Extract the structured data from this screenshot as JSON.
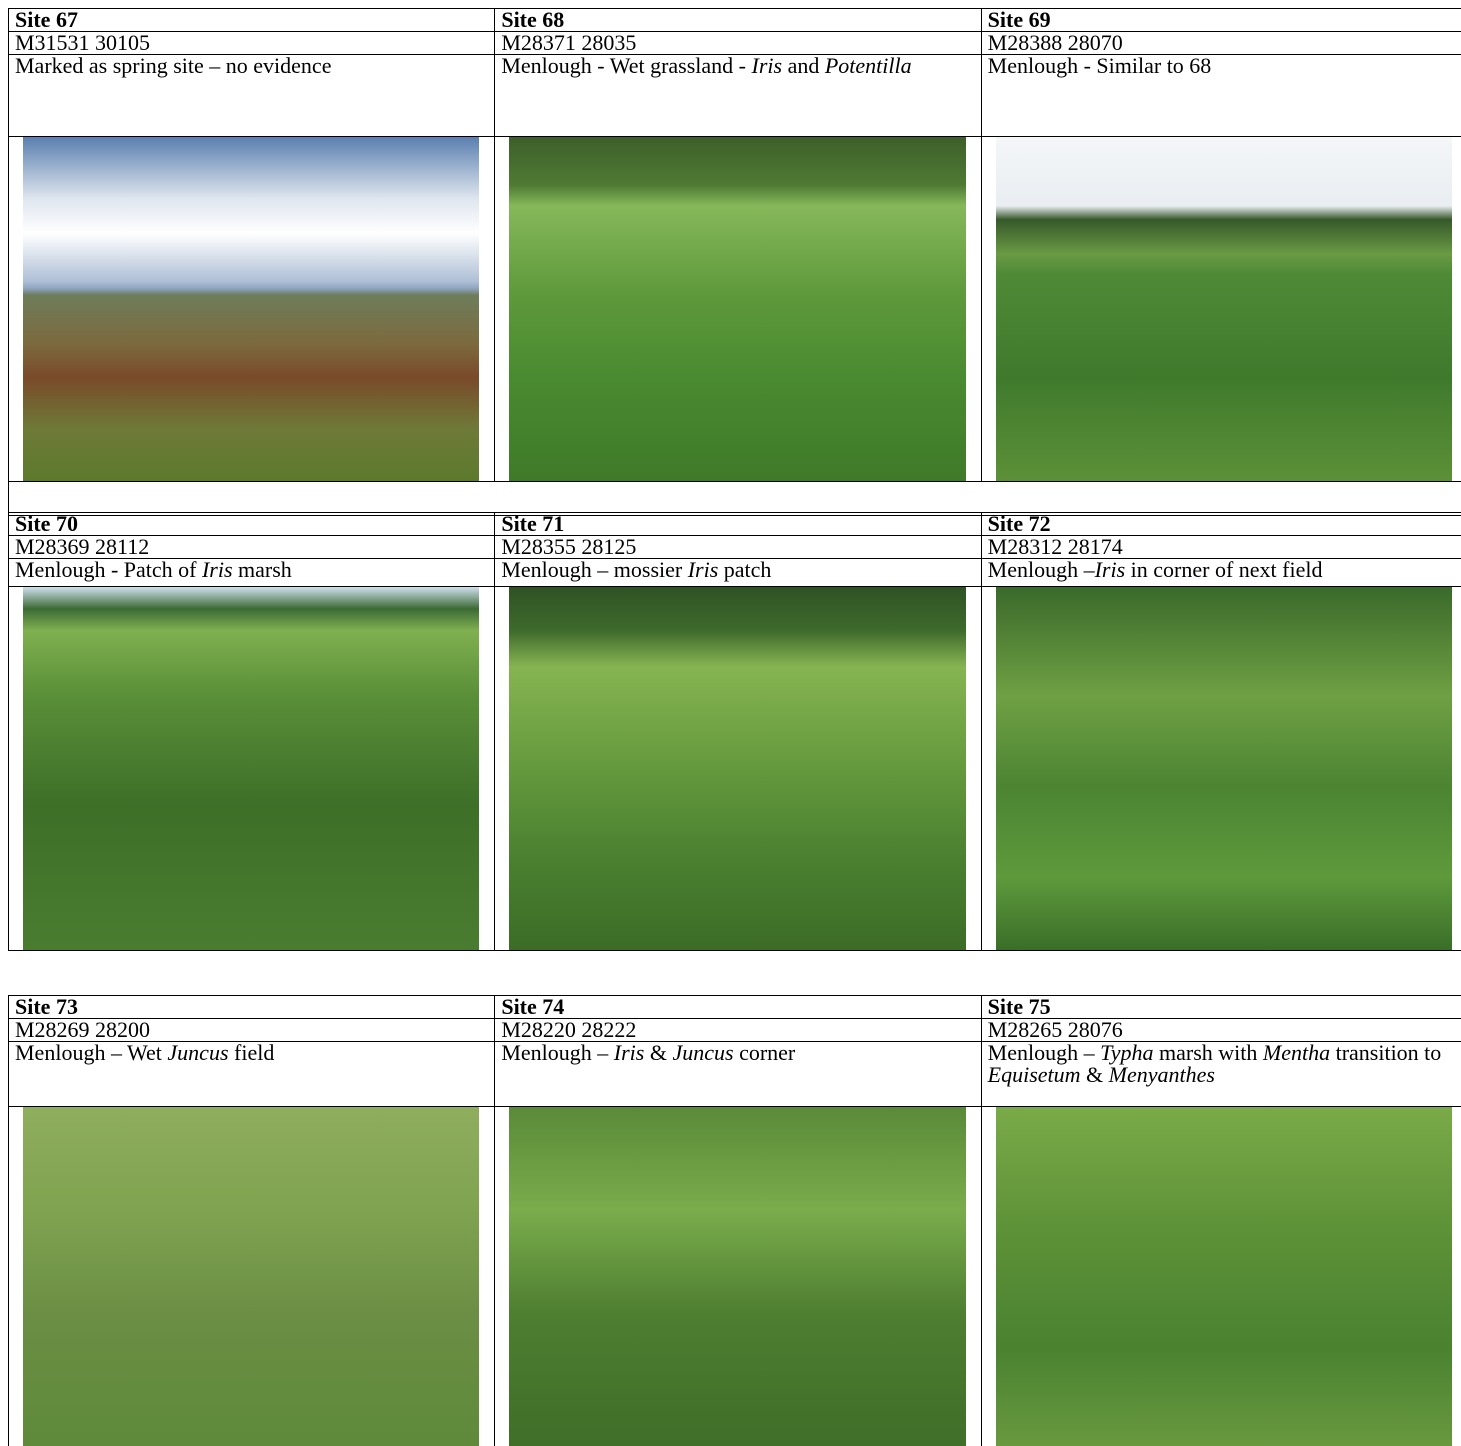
{
  "blocks": [
    {
      "sites": [
        {
          "title": "Site 67",
          "coords": "M31531 30105",
          "description": [
            {
              "text": "Marked as spring site – no evidence",
              "italic": false
            }
          ]
        },
        {
          "title": "Site 68",
          "coords": "M28371 28035",
          "description": [
            {
              "text": "Menlough - Wet grassland - ",
              "italic": false
            },
            {
              "text": "Iris",
              "italic": true
            },
            {
              "text": " and ",
              "italic": false
            },
            {
              "text": "Potentilla",
              "italic": true
            }
          ]
        },
        {
          "title": "Site 69",
          "coords": "M28388 28070",
          "description": [
            {
              "text": "Menlough - Similar to 68",
              "italic": false
            }
          ]
        }
      ]
    },
    {
      "sites": [
        {
          "title": "Site 70",
          "coords": "M28369 28112",
          "description": [
            {
              "text": "Menlough - Patch of ",
              "italic": false
            },
            {
              "text": "Iris",
              "italic": true
            },
            {
              "text": " marsh",
              "italic": false
            }
          ]
        },
        {
          "title": "Site 71",
          "coords": "M28355 28125",
          "description": [
            {
              "text": "Menlough – mossier ",
              "italic": false
            },
            {
              "text": "Iris",
              "italic": true
            },
            {
              "text": " patch",
              "italic": false
            }
          ]
        },
        {
          "title": "Site 72",
          "coords": "M28312 28174",
          "description": [
            {
              "text": "Menlough –",
              "italic": false
            },
            {
              "text": "Iris",
              "italic": true
            },
            {
              "text": " in corner of next field",
              "italic": false
            }
          ]
        }
      ]
    },
    {
      "sites": [
        {
          "title": "Site 73",
          "coords": "M28269 28200",
          "description": [
            {
              "text": "Menlough – Wet ",
              "italic": false
            },
            {
              "text": "Juncus",
              "italic": true
            },
            {
              "text": " field",
              "italic": false
            }
          ]
        },
        {
          "title": "Site 74",
          "coords": "M28220 28222",
          "description": [
            {
              "text": "Menlough – ",
              "italic": false
            },
            {
              "text": "Iris",
              "italic": true
            },
            {
              "text": " & ",
              "italic": false
            },
            {
              "text": "Juncus",
              "italic": true
            },
            {
              "text": " corner",
              "italic": false
            }
          ]
        },
        {
          "title": "Site 75",
          "coords": "M28265 28076",
          "description": [
            {
              "text": "Menlough – ",
              "italic": false
            },
            {
              "text": "Typha",
              "italic": true
            },
            {
              "text": " marsh with ",
              "italic": false
            },
            {
              "text": "Mentha",
              "italic": true
            },
            {
              "text": " transition to ",
              "italic": false
            },
            {
              "text": "Equisetum",
              "italic": true
            },
            {
              "text": " & ",
              "italic": false
            },
            {
              "text": "Menyanthes",
              "italic": true
            }
          ]
        }
      ]
    }
  ]
}
